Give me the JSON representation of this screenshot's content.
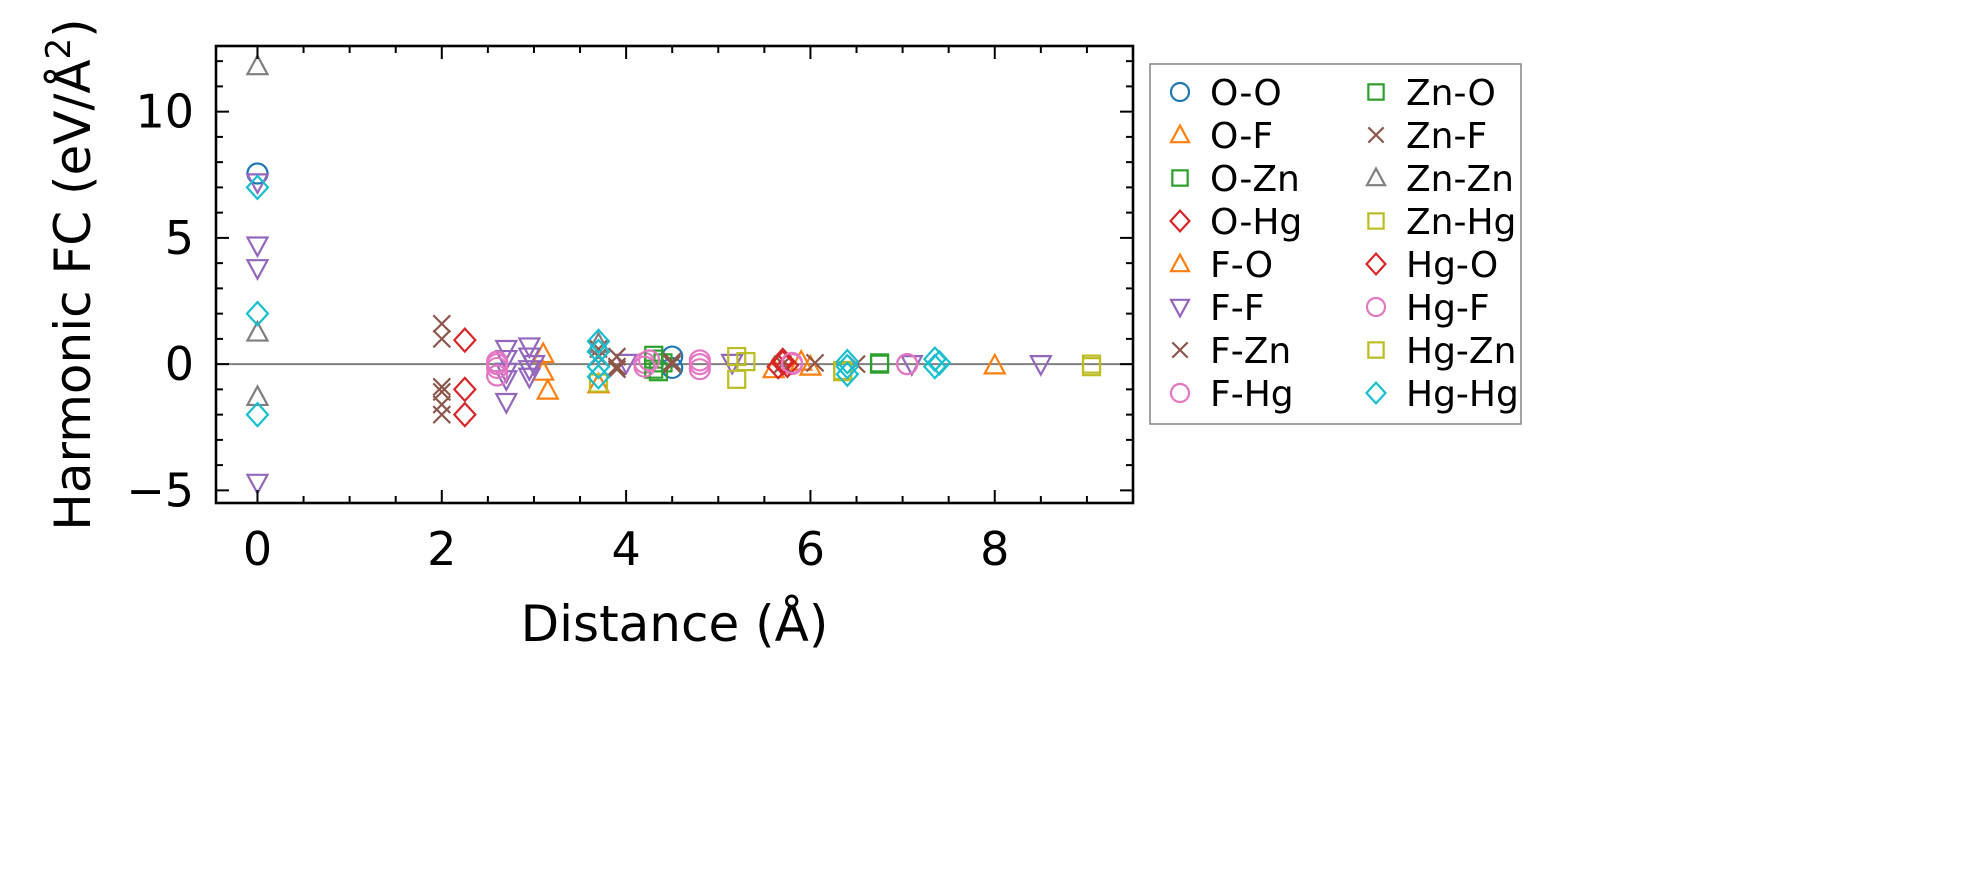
{
  "chart_data": {
    "type": "scatter",
    "title": "",
    "xlabel": "Distance (Å)",
    "ylabel_main": "Harmonic FC (eV/Å",
    "ylabel_sup": "2",
    "ylabel_tail": ")",
    "ylabel": "Harmonic FC (eV/Å²)",
    "xlim": [
      -0.45,
      9.5
    ],
    "ylim": [
      -5.5,
      12.6
    ],
    "xticks": [
      0,
      2,
      4,
      6,
      8
    ],
    "yticks": [
      -5,
      0,
      5,
      10
    ],
    "xtick_labels": [
      "0",
      "2",
      "4",
      "6",
      "8"
    ],
    "ytick_labels": [
      "−5",
      "0",
      "5",
      "10"
    ],
    "xminor_step": 0.5,
    "yminor_step": 1,
    "zero_line": true,
    "legend_position": "outside-right",
    "series": [
      {
        "name": "O-O",
        "marker": "circle",
        "color": "#1f77b4",
        "points": [
          [
            0,
            7.55
          ],
          [
            4.5,
            0.3
          ],
          [
            4.5,
            -0.15
          ]
        ]
      },
      {
        "name": "O-F",
        "marker": "triangle-up",
        "color": "#ff7f0e",
        "points": [
          [
            3.1,
            0.4
          ],
          [
            3.1,
            -0.3
          ],
          [
            3.15,
            -1.05
          ],
          [
            5.6,
            -0.2
          ],
          [
            8.0,
            -0.05
          ]
        ]
      },
      {
        "name": "O-Zn",
        "marker": "square",
        "color": "#2ca02c",
        "points": [
          [
            4.3,
            0.35
          ],
          [
            4.35,
            -0.3
          ],
          [
            4.4,
            0.05
          ],
          [
            6.75,
            0.0
          ]
        ]
      },
      {
        "name": "O-Hg",
        "marker": "diamond",
        "color": "#d62728",
        "points": [
          [
            2.25,
            0.95
          ],
          [
            2.25,
            -1.0
          ],
          [
            2.25,
            -2.0
          ],
          [
            5.7,
            0.15
          ],
          [
            5.65,
            -0.1
          ]
        ]
      },
      {
        "name": "F-O",
        "marker": "triangle-up",
        "color": "#ff7f0e",
        "points": [
          [
            3.7,
            -0.8
          ],
          [
            5.9,
            0.1
          ],
          [
            6.0,
            -0.1
          ]
        ]
      },
      {
        "name": "F-F",
        "marker": "triangle-down",
        "color": "#9467bd",
        "points": [
          [
            0,
            7.2
          ],
          [
            0,
            4.7
          ],
          [
            0,
            3.8
          ],
          [
            0,
            -4.7
          ],
          [
            2.7,
            0.6
          ],
          [
            2.7,
            0.2
          ],
          [
            2.7,
            -0.3
          ],
          [
            2.7,
            -0.6
          ],
          [
            2.7,
            -1.5
          ],
          [
            2.95,
            0.7
          ],
          [
            2.95,
            0.3
          ],
          [
            2.95,
            -0.2
          ],
          [
            2.95,
            -0.5
          ],
          [
            3.0,
            0.0
          ],
          [
            4.0,
            0.05
          ],
          [
            5.15,
            0.05
          ],
          [
            7.1,
            0.0
          ],
          [
            8.5,
            0.0
          ]
        ]
      },
      {
        "name": "F-Zn",
        "marker": "x",
        "color": "#8c564b",
        "points": [
          [
            2.0,
            1.6
          ],
          [
            2.0,
            1.0
          ],
          [
            2.0,
            -0.9
          ],
          [
            2.0,
            -1.1
          ],
          [
            2.0,
            -1.6
          ],
          [
            2.0,
            -2.0
          ],
          [
            3.7,
            0.6
          ],
          [
            3.9,
            0.3
          ],
          [
            3.9,
            -0.2
          ],
          [
            4.5,
            0.1
          ],
          [
            5.7,
            0.0
          ],
          [
            6.05,
            0.05
          ],
          [
            6.5,
            0.0
          ]
        ]
      },
      {
        "name": "F-Hg",
        "marker": "circle",
        "color": "#e377c2",
        "points": [
          [
            2.6,
            0.1
          ],
          [
            2.6,
            -0.15
          ],
          [
            2.6,
            -0.45
          ],
          [
            4.2,
            0.05
          ],
          [
            4.8,
            0.0
          ],
          [
            5.8,
            0.0
          ],
          [
            7.05,
            0.0
          ]
        ]
      },
      {
        "name": "Zn-O",
        "marker": "square",
        "color": "#2ca02c",
        "points": [
          [
            4.3,
            0.2
          ],
          [
            4.3,
            -0.2
          ],
          [
            6.75,
            0.05
          ]
        ]
      },
      {
        "name": "Zn-F",
        "marker": "x",
        "color": "#8c564b",
        "points": [
          [
            3.7,
            0.3
          ],
          [
            3.9,
            -0.1
          ],
          [
            4.5,
            0.0
          ]
        ]
      },
      {
        "name": "Zn-Zn",
        "marker": "triangle-up",
        "color": "#7f7f7f",
        "points": [
          [
            0,
            11.8
          ],
          [
            0,
            1.25
          ],
          [
            0,
            -1.3
          ],
          [
            3.7,
            0.8
          ]
        ]
      },
      {
        "name": "Zn-Hg",
        "marker": "square",
        "color": "#bcbd22",
        "points": [
          [
            5.2,
            0.3
          ],
          [
            5.2,
            -0.6
          ],
          [
            3.7,
            -0.75
          ],
          [
            6.35,
            -0.25
          ],
          [
            9.05,
            -0.1
          ]
        ]
      },
      {
        "name": "Hg-O",
        "marker": "diamond",
        "color": "#d62728",
        "points": [
          [
            5.7,
            0.05
          ],
          [
            5.75,
            -0.05
          ]
        ]
      },
      {
        "name": "Hg-F",
        "marker": "circle",
        "color": "#e377c2",
        "points": [
          [
            2.6,
            0.0
          ],
          [
            4.2,
            -0.1
          ],
          [
            4.25,
            0.15
          ],
          [
            4.8,
            0.15
          ],
          [
            4.8,
            -0.2
          ],
          [
            5.8,
            0.05
          ],
          [
            7.05,
            0.0
          ]
        ]
      },
      {
        "name": "Hg-Zn",
        "marker": "square",
        "color": "#bcbd22",
        "points": [
          [
            5.3,
            0.1
          ],
          [
            6.35,
            -0.3
          ],
          [
            9.05,
            0.0
          ]
        ]
      },
      {
        "name": "Hg-Hg",
        "marker": "diamond",
        "color": "#17becf",
        "points": [
          [
            0,
            7.0
          ],
          [
            0,
            2.0
          ],
          [
            0,
            -2.0
          ],
          [
            3.7,
            0.9
          ],
          [
            3.7,
            0.5
          ],
          [
            3.7,
            -0.1
          ],
          [
            3.7,
            -0.5
          ],
          [
            6.4,
            0.1
          ],
          [
            6.4,
            -0.1
          ],
          [
            6.4,
            -0.4
          ],
          [
            7.35,
            0.2
          ],
          [
            7.35,
            -0.1
          ],
          [
            7.4,
            0.05
          ]
        ]
      }
    ]
  }
}
